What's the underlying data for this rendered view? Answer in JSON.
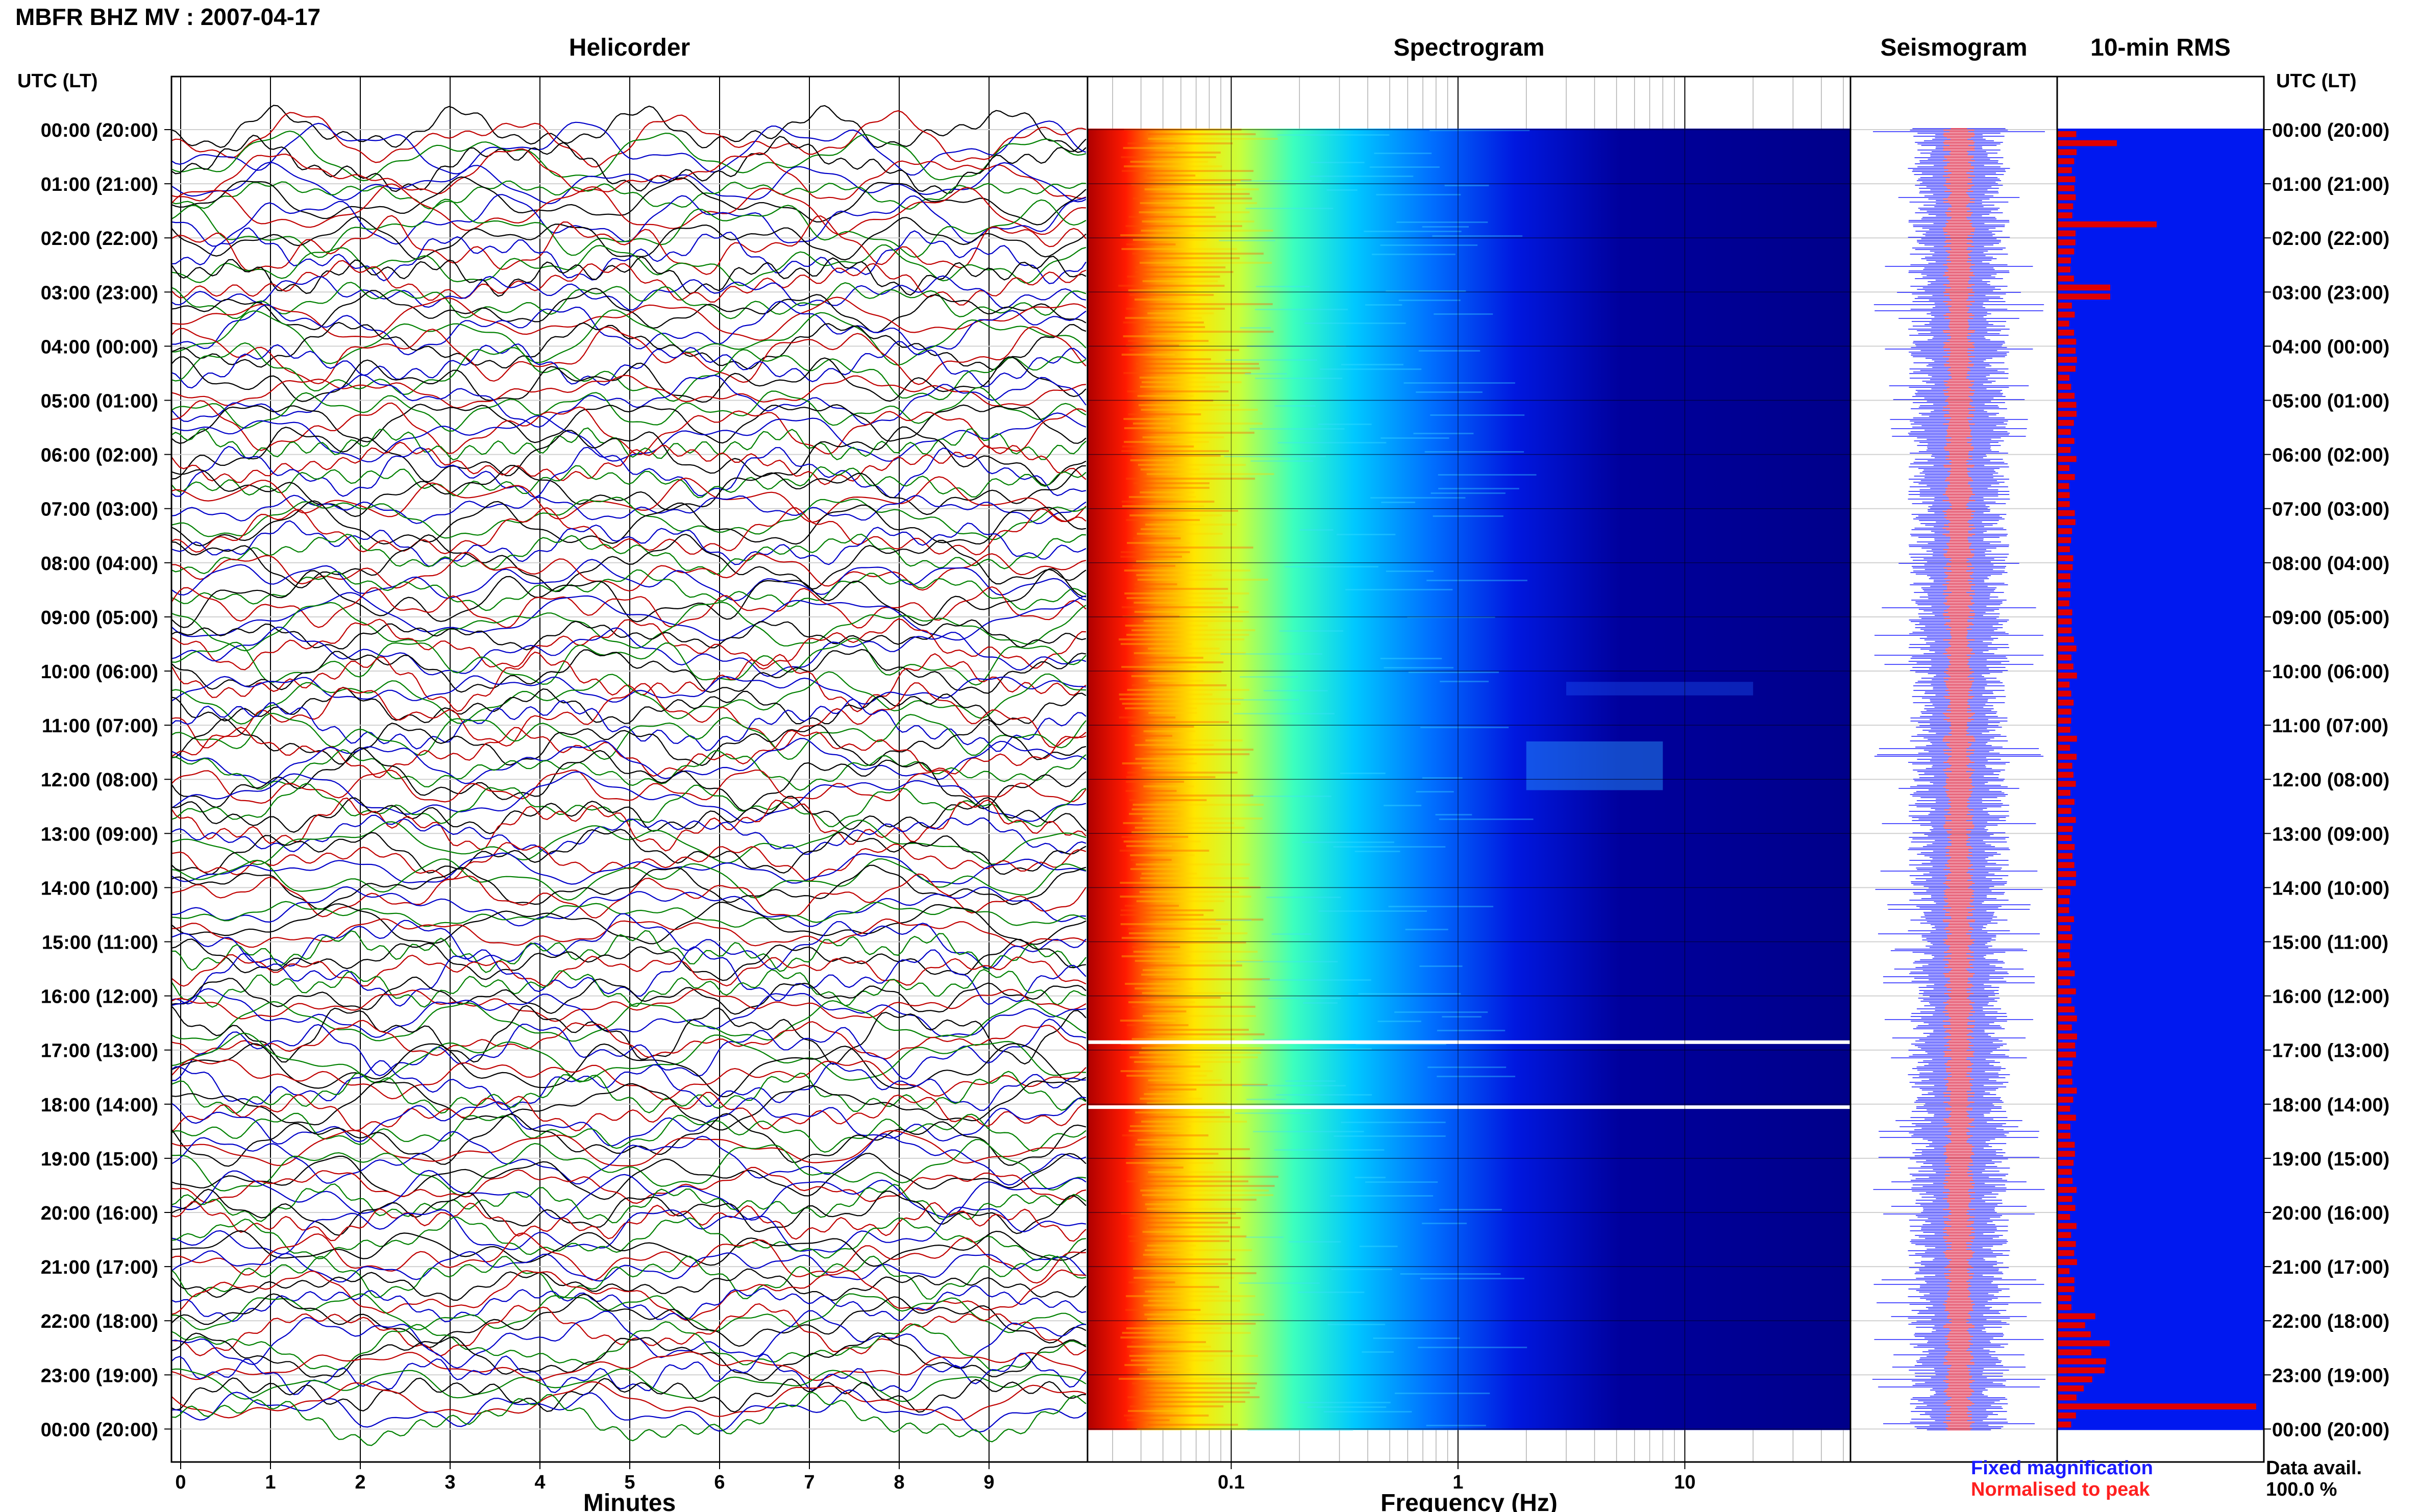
{
  "header": {
    "title": "MBFR BHZ MV : 2007-04-17"
  },
  "panels": {
    "helicorder": "Helicorder",
    "spectrogram": "Spectrogram",
    "seismogram": "Seismogram",
    "rms": "10-min RMS"
  },
  "axis_headers": {
    "left": "UTC (LT)",
    "right": "UTC (LT)"
  },
  "legend": {
    "fixed": "Fixed magnification",
    "normalised": "Normalised to peak",
    "data_avail_label": "Data avail.",
    "data_avail_value": "100.0 %"
  },
  "colors": {
    "trace_cycle": [
      "#000000",
      "#c00000",
      "#0000c8",
      "#008000"
    ],
    "seis_fixed": "#1a1aff",
    "seis_norm": "#ff2020",
    "rms_bg": "#0018f0",
    "rms_bar": "#e00000"
  },
  "chart_data": [
    {
      "type": "line",
      "title": "Helicorder",
      "xlabel": "Minutes",
      "xticks": [
        "0",
        "1",
        "2",
        "3",
        "4",
        "5",
        "6",
        "7",
        "8",
        "9"
      ],
      "xlim": [
        0,
        10
      ],
      "y_time_labels": [
        "00:00 (20:00)",
        "01:00 (21:00)",
        "02:00 (22:00)",
        "03:00 (23:00)",
        "04:00 (00:00)",
        "05:00 (01:00)",
        "06:00 (02:00)",
        "07:00 (03:00)",
        "08:00 (04:00)",
        "09:00 (05:00)",
        "10:00 (06:00)",
        "11:00 (07:00)",
        "12:00 (08:00)",
        "13:00 (09:00)",
        "14:00 (10:00)",
        "15:00 (11:00)",
        "16:00 (12:00)",
        "17:00 (13:00)",
        "18:00 (14:00)",
        "19:00 (15:00)",
        "20:00 (16:00)",
        "21:00 (17:00)",
        "22:00 (18:00)",
        "23:00 (19:00)",
        "00:00 (20:00)"
      ],
      "traces_per_hour": 6,
      "grid": true
    },
    {
      "type": "heatmap",
      "title": "Spectrogram",
      "xlabel": "Frequency (Hz)",
      "xscale": "log",
      "xticks": [
        "0.1",
        "1",
        "10"
      ],
      "xlim": [
        0.025,
        50
      ],
      "colormap": "jet",
      "notes": "High power at low frequencies (red/yellow below ~0.1 Hz), falling to dark blue above ~2 Hz; elevated band 2-8 Hz near 11:30-12:30 UTC; data gaps near 17:00 and 18:00 UTC."
    },
    {
      "type": "line",
      "title": "Seismogram",
      "series": [
        {
          "name": "Fixed magnification"
        },
        {
          "name": "Normalised to peak"
        }
      ]
    },
    {
      "type": "bar",
      "title": "10-min RMS",
      "notes": "Relative RMS per 10-minute window; largest peaks near 02:00, 02:50 and 23:00 UTC."
    }
  ]
}
